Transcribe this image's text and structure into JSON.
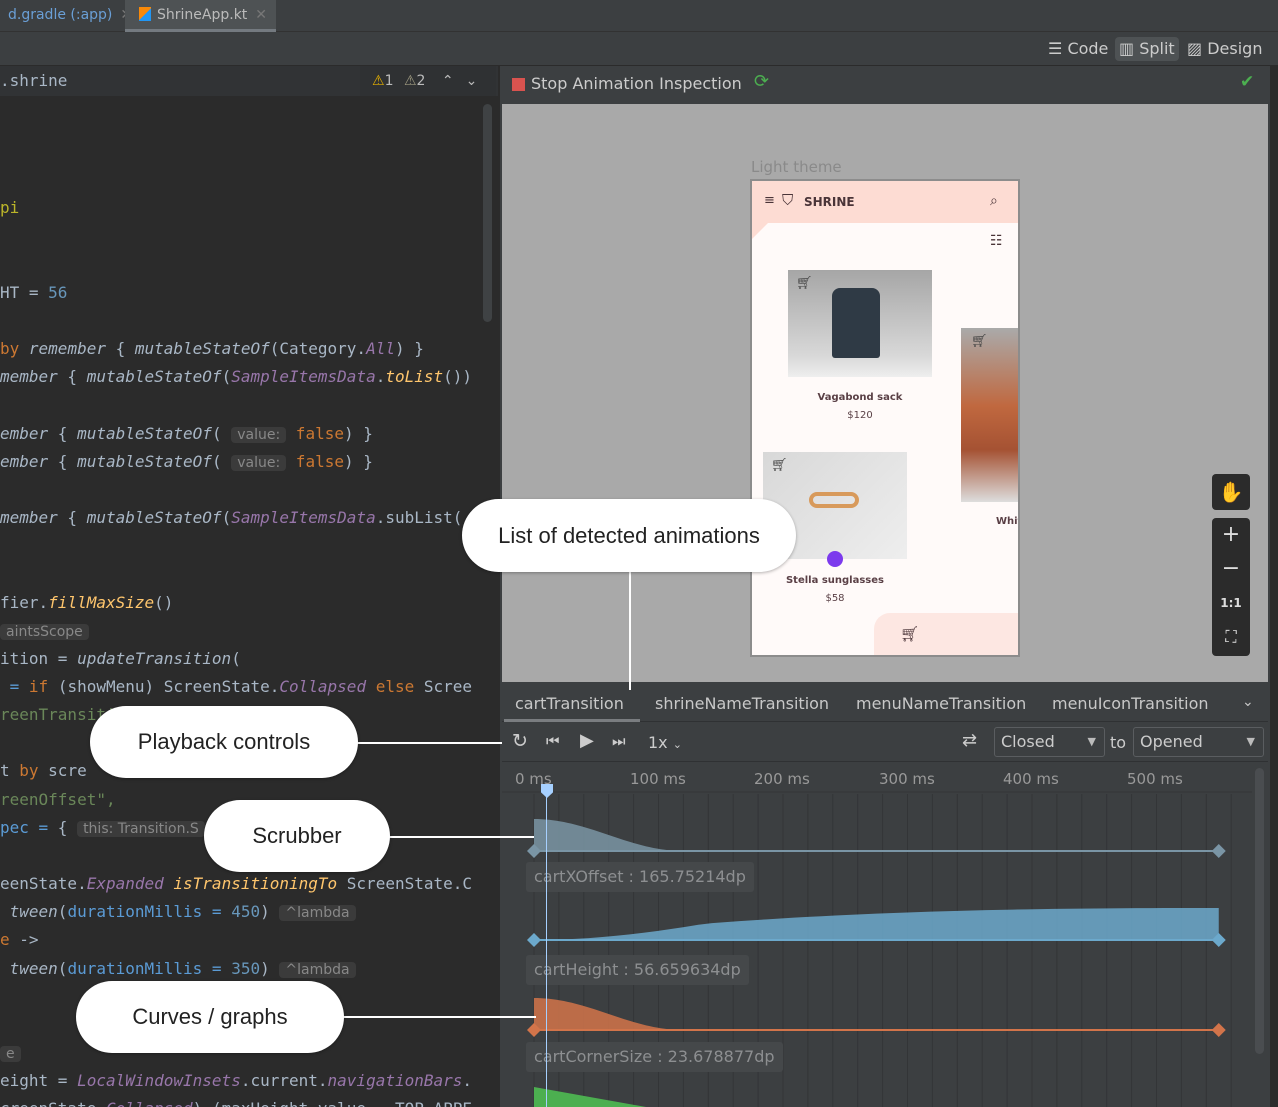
{
  "tabs": [
    {
      "label": "d.gradle (:app)"
    },
    {
      "label": "ShrineApp.kt",
      "active": true
    }
  ],
  "toolbar": {
    "modes": [
      "Code",
      "Split",
      "Design"
    ],
    "active": "Split"
  },
  "editor": {
    "breadcrumb": ".shrine",
    "warnings": "1",
    "weak_warnings": "2",
    "lines": [
      [],
      [],
      [],
      [
        {
          "t": "pi",
          "c": "yel"
        }
      ],
      [],
      [],
      [
        {
          "t": "HT",
          "c": ""
        },
        {
          "t": " = ",
          "c": ""
        },
        {
          "t": "56",
          "c": "num"
        }
      ],
      [],
      [
        {
          "t": "by ",
          "c": "kw"
        },
        {
          "t": "remember",
          "c": "it"
        },
        {
          "t": " { ",
          "c": ""
        },
        {
          "t": "mutableStateOf",
          "c": "it"
        },
        {
          "t": "(Category.",
          "c": ""
        },
        {
          "t": "All",
          "c": "pu"
        },
        {
          "t": ") }",
          "c": ""
        }
      ],
      [
        {
          "t": "member",
          "c": "it"
        },
        {
          "t": " { ",
          "c": ""
        },
        {
          "t": "mutableStateOf",
          "c": "it"
        },
        {
          "t": "(",
          "c": ""
        },
        {
          "t": "SampleItemsData",
          "c": "pu"
        },
        {
          "t": ".",
          "c": ""
        },
        {
          "t": "toList",
          "c": "fn"
        },
        {
          "t": "())",
          "c": ""
        }
      ],
      [],
      [
        {
          "t": "ember",
          "c": "it"
        },
        {
          "t": " { ",
          "c": ""
        },
        {
          "t": "mutableStateOf",
          "c": "it"
        },
        {
          "t": "( ",
          "c": ""
        },
        {
          "t": "value:",
          "c": "hint"
        },
        {
          "t": " false",
          "c": "kw"
        },
        {
          "t": ") }",
          "c": ""
        }
      ],
      [
        {
          "t": "ember",
          "c": "it"
        },
        {
          "t": " { ",
          "c": ""
        },
        {
          "t": "mutableStateOf",
          "c": "it"
        },
        {
          "t": "( ",
          "c": ""
        },
        {
          "t": "value:",
          "c": "hint"
        },
        {
          "t": " false",
          "c": "kw"
        },
        {
          "t": ") }",
          "c": ""
        }
      ],
      [],
      [
        {
          "t": "member",
          "c": "it"
        },
        {
          "t": " { ",
          "c": ""
        },
        {
          "t": "mutableStateOf",
          "c": "it"
        },
        {
          "t": "(",
          "c": ""
        },
        {
          "t": "SampleItemsData",
          "c": "pu"
        },
        {
          "t": ".subList(",
          "c": ""
        }
      ],
      [],
      [],
      [
        {
          "t": "fier.",
          "c": ""
        },
        {
          "t": "fillMaxSize",
          "c": "fn"
        },
        {
          "t": "()",
          "c": ""
        }
      ],
      [
        {
          "t": "aintsScope",
          "c": "hint"
        }
      ],
      [
        {
          "t": "ition = ",
          "c": ""
        },
        {
          "t": "updateTransition",
          "c": "it"
        },
        {
          "t": "(",
          "c": ""
        }
      ],
      [
        {
          "t": " = ",
          "c": "blue"
        },
        {
          "t": "if ",
          "c": "kw"
        },
        {
          "t": "(showMenu) ScreenState.",
          "c": ""
        },
        {
          "t": "Collapsed",
          "c": "pu"
        },
        {
          "t": " else ",
          "c": "kw"
        },
        {
          "t": "Scree",
          "c": ""
        }
      ],
      [
        {
          "t": "reenTransition\"",
          "c": "str"
        }
      ],
      [],
      [
        {
          "t": "t ",
          "c": ""
        },
        {
          "t": "by ",
          "c": "kw"
        },
        {
          "t": "scre",
          "c": ""
        }
      ],
      [
        {
          "t": "reenOffset\",",
          "c": "str"
        }
      ],
      [
        {
          "t": "pec = ",
          "c": "blue"
        },
        {
          "t": "{ ",
          "c": ""
        },
        {
          "t": "this: Transition.S",
          "c": "hint"
        }
      ],
      [],
      [
        {
          "t": "eenState.",
          "c": ""
        },
        {
          "t": "Expanded",
          "c": "pu"
        },
        {
          "t": " isTransitioningTo",
          "c": "fn"
        },
        {
          "t": " ScreenState.C",
          "c": ""
        }
      ],
      [
        {
          "t": " tween",
          "c": "it"
        },
        {
          "t": "(",
          "c": ""
        },
        {
          "t": "durationMillis",
          "c": "blue"
        },
        {
          "t": " = ",
          "c": "blue"
        },
        {
          "t": "450",
          "c": "num"
        },
        {
          "t": ") ",
          "c": ""
        },
        {
          "t": "^lambda",
          "c": "hint"
        }
      ],
      [
        {
          "t": "e ",
          "c": "kw"
        },
        {
          "t": "->",
          "c": ""
        }
      ],
      [
        {
          "t": " tween",
          "c": "it"
        },
        {
          "t": "(",
          "c": ""
        },
        {
          "t": "durationMillis",
          "c": "blue"
        },
        {
          "t": " = ",
          "c": "blue"
        },
        {
          "t": "350",
          "c": "num"
        },
        {
          "t": ") ",
          "c": ""
        },
        {
          "t": "^lambda",
          "c": "hint"
        }
      ],
      [],
      [],
      [
        {
          "t": "e",
          "c": "hint"
        }
      ],
      [
        {
          "t": "eight = ",
          "c": ""
        },
        {
          "t": "LocalWindowInsets",
          "c": "pu"
        },
        {
          "t": ".current.",
          "c": ""
        },
        {
          "t": "navigationBars",
          "c": "pu"
        },
        {
          "t": ".",
          "c": ""
        }
      ],
      [
        {
          "t": "creenState.",
          "c": ""
        },
        {
          "t": "Collapsed",
          "c": "pu"
        },
        {
          "t": ") (maxHeight.value - TOP_APPE",
          "c": ""
        }
      ]
    ]
  },
  "inspector": {
    "stop_label": "Stop Animation Inspection",
    "stop_color": "#d9534f",
    "ok_color": "#4caf50"
  },
  "preview": {
    "theme_label": "Light theme",
    "app": {
      "title": "SHRINE",
      "items": [
        {
          "name": "Vagabond sack",
          "price": "$120"
        },
        {
          "name": "Stella sunglasses",
          "price": "$58"
        },
        {
          "name": "Whit"
        }
      ]
    },
    "zoom_controls": [
      "hand",
      "+",
      "−",
      "1:1",
      "fit"
    ]
  },
  "animations": {
    "tabs": [
      "cartTransition",
      "shrineNameTransition",
      "menuNameTransition",
      "menuIconTransition"
    ],
    "active": "cartTransition"
  },
  "playback": {
    "speed": "1x",
    "from_state": "Closed",
    "to_label": "to",
    "to_state": "Opened"
  },
  "timeline": {
    "ticks": [
      "0 ms",
      "100 ms",
      "200 ms",
      "300 ms",
      "400 ms",
      "500 ms"
    ],
    "scrubber_ms": 10,
    "end_ms": 550,
    "properties": [
      {
        "label": "cartXOffset : 165.75214dp",
        "color": "#7a95a5"
      },
      {
        "label": "cartHeight : 56.659634dp",
        "color": "#6ca9cc"
      },
      {
        "label": "cartCornerSize : 23.678877dp",
        "color": "#d2744a"
      },
      {
        "label": "",
        "color": "#4caf50"
      }
    ]
  },
  "callouts": {
    "animations": "List of detected animations",
    "playback": "Playback controls",
    "scrubber": "Scrubber",
    "curves": "Curves / graphs"
  }
}
